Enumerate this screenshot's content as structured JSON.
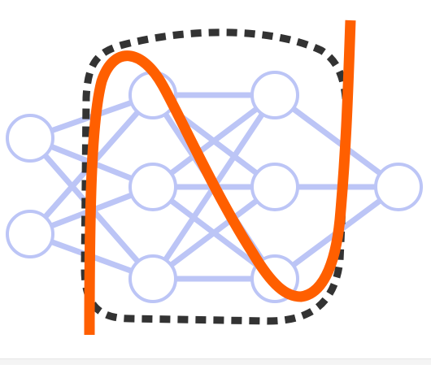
{
  "diagram": {
    "kind": "neural-network-with-curve-overlay",
    "layers": [
      {
        "name": "input",
        "count": 2
      },
      {
        "name": "hidden-1",
        "count": 3
      },
      {
        "name": "hidden-2",
        "count": 3
      },
      {
        "name": "output",
        "count": 1
      }
    ],
    "colors": {
      "edge": "#bcc5f6",
      "node_stroke": "#bcc5f6",
      "node_fill": "#ffffff",
      "curve": "#ff5f00",
      "boundary": "#333333",
      "background": "#ffffff"
    }
  }
}
